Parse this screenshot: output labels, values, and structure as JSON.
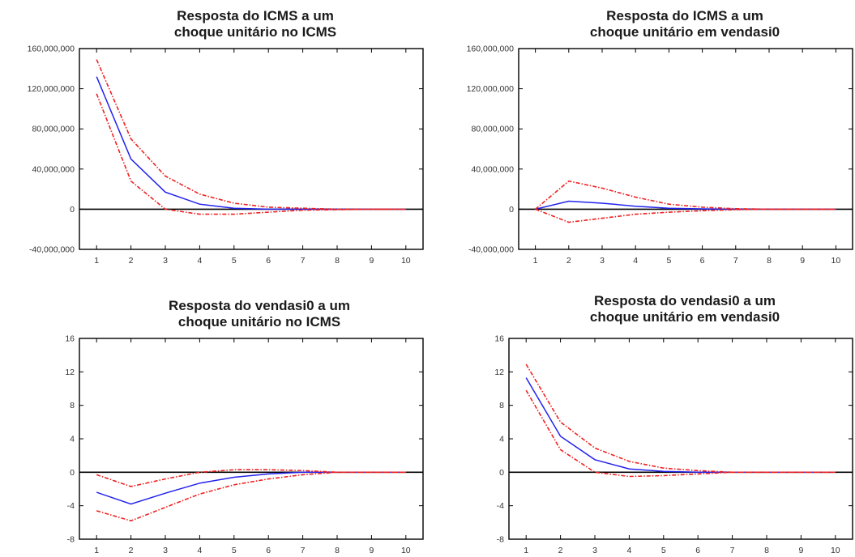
{
  "chart_data": [
    {
      "type": "line",
      "title_line1": "Resposta do ICMS a um",
      "title_line2": "choque unitário no ICMS",
      "x": [
        1,
        2,
        3,
        4,
        5,
        6,
        7,
        8,
        9,
        10
      ],
      "x_tick_labels": [
        "1",
        "2",
        "3",
        "4",
        "5",
        "6",
        "7",
        "8",
        "9",
        "10"
      ],
      "ylim": [
        -40000000,
        160000000
      ],
      "y_ticks": [
        -40000000,
        0,
        40000000,
        80000000,
        120000000,
        160000000
      ],
      "y_tick_labels": [
        "-40,000,000",
        "0",
        "40,000,000",
        "80,000,000",
        "120,000,000",
        "160,000,000"
      ],
      "series": [
        {
          "role": "response",
          "color": "#2222ee",
          "values": [
            132000000,
            50000000,
            17000000,
            5000000,
            1000000,
            0,
            0,
            0,
            0,
            0
          ]
        },
        {
          "role": "upper",
          "color": "#ee2222",
          "values": [
            149000000,
            70000000,
            33000000,
            15000000,
            6000000,
            2000000,
            1000000,
            0,
            0,
            0
          ]
        },
        {
          "role": "lower",
          "color": "#ee2222",
          "values": [
            115000000,
            28000000,
            0,
            -5000000,
            -5000000,
            -3000000,
            -1000000,
            -500000,
            0,
            0
          ]
        }
      ]
    },
    {
      "type": "line",
      "title_line1": "Resposta do ICMS a um",
      "title_line2": "choque unitário em vendasi0",
      "x": [
        1,
        2,
        3,
        4,
        5,
        6,
        7,
        8,
        9,
        10
      ],
      "x_tick_labels": [
        "1",
        "2",
        "3",
        "4",
        "5",
        "6",
        "7",
        "8",
        "9",
        "10"
      ],
      "ylim": [
        -40000000,
        160000000
      ],
      "y_ticks": [
        -40000000,
        0,
        40000000,
        80000000,
        120000000,
        160000000
      ],
      "y_tick_labels": [
        "-40,000,000",
        "0",
        "40,000,000",
        "80,000,000",
        "120,000,000",
        "160,000,000"
      ],
      "series": [
        {
          "role": "response",
          "color": "#2222ee",
          "values": [
            0,
            8000000,
            6000000,
            3000000,
            1000000,
            300000,
            0,
            0,
            0,
            0
          ]
        },
        {
          "role": "upper",
          "color": "#ee2222",
          "values": [
            0,
            28000000,
            21000000,
            12000000,
            5000000,
            2000000,
            500000,
            0,
            0,
            0
          ]
        },
        {
          "role": "lower",
          "color": "#ee2222",
          "values": [
            0,
            -13000000,
            -9000000,
            -5000000,
            -3000000,
            -1500000,
            -500000,
            0,
            0,
            0
          ]
        }
      ]
    },
    {
      "type": "line",
      "title_line1": "Resposta do vendasi0 a um",
      "title_line2": "choque unitário no ICMS",
      "x": [
        1,
        2,
        3,
        4,
        5,
        6,
        7,
        8,
        9,
        10
      ],
      "x_tick_labels": [
        "1",
        "2",
        "3",
        "4",
        "5",
        "6",
        "7",
        "8",
        "9",
        "10"
      ],
      "ylim": [
        -8,
        16
      ],
      "y_ticks": [
        -8,
        -4,
        0,
        4,
        8,
        12,
        16
      ],
      "y_tick_labels": [
        "-8",
        "-4",
        "0",
        "4",
        "8",
        "12",
        "16"
      ],
      "series": [
        {
          "role": "response",
          "color": "#2222ee",
          "values": [
            -2.4,
            -3.8,
            -2.5,
            -1.3,
            -0.6,
            -0.2,
            0,
            0,
            0,
            0
          ]
        },
        {
          "role": "upper",
          "color": "#ee2222",
          "values": [
            -0.3,
            -1.7,
            -0.8,
            0,
            0.3,
            0.3,
            0.2,
            0,
            0,
            0
          ]
        },
        {
          "role": "lower",
          "color": "#ee2222",
          "values": [
            -4.6,
            -5.8,
            -4.2,
            -2.6,
            -1.5,
            -0.8,
            -0.3,
            0,
            0,
            0
          ]
        }
      ]
    },
    {
      "type": "line",
      "title_line1": "Resposta do vendasi0 a um",
      "title_line2": "choque unitário em vendasi0",
      "x": [
        1,
        2,
        3,
        4,
        5,
        6,
        7,
        8,
        9,
        10
      ],
      "x_tick_labels": [
        "1",
        "2",
        "3",
        "4",
        "5",
        "6",
        "7",
        "8",
        "9",
        "10"
      ],
      "ylim": [
        -8,
        16
      ],
      "y_ticks": [
        -8,
        -4,
        0,
        4,
        8,
        12,
        16
      ],
      "y_tick_labels": [
        "-8",
        "-4",
        "0",
        "4",
        "8",
        "12",
        "16"
      ],
      "series": [
        {
          "role": "response",
          "color": "#2222ee",
          "values": [
            11.3,
            4.3,
            1.5,
            0.4,
            0.1,
            0,
            0,
            0,
            0,
            0
          ]
        },
        {
          "role": "upper",
          "color": "#ee2222",
          "values": [
            12.9,
            6.0,
            2.9,
            1.3,
            0.5,
            0.2,
            0,
            0,
            0,
            0
          ]
        },
        {
          "role": "lower",
          "color": "#ee2222",
          "values": [
            9.8,
            2.7,
            0,
            -0.5,
            -0.4,
            -0.2,
            0,
            0,
            0,
            0
          ]
        }
      ]
    }
  ]
}
